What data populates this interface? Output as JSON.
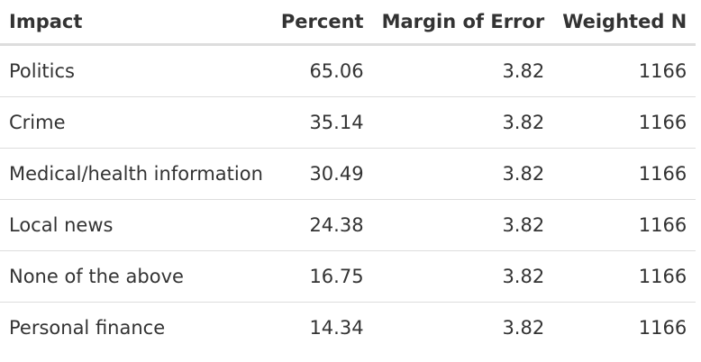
{
  "table": {
    "headers": [
      "Impact",
      "Percent",
      "Margin of Error",
      "Weighted N"
    ],
    "rows": [
      [
        "Politics",
        "65.06",
        "3.82",
        "1166"
      ],
      [
        "Crime",
        "35.14",
        "3.82",
        "1166"
      ],
      [
        "Medical/health information",
        "30.49",
        "3.82",
        "1166"
      ],
      [
        "Local news",
        "24.38",
        "3.82",
        "1166"
      ],
      [
        "None of the above",
        "16.75",
        "3.82",
        "1166"
      ],
      [
        "Personal finance",
        "14.34",
        "3.82",
        "1166"
      ]
    ]
  }
}
